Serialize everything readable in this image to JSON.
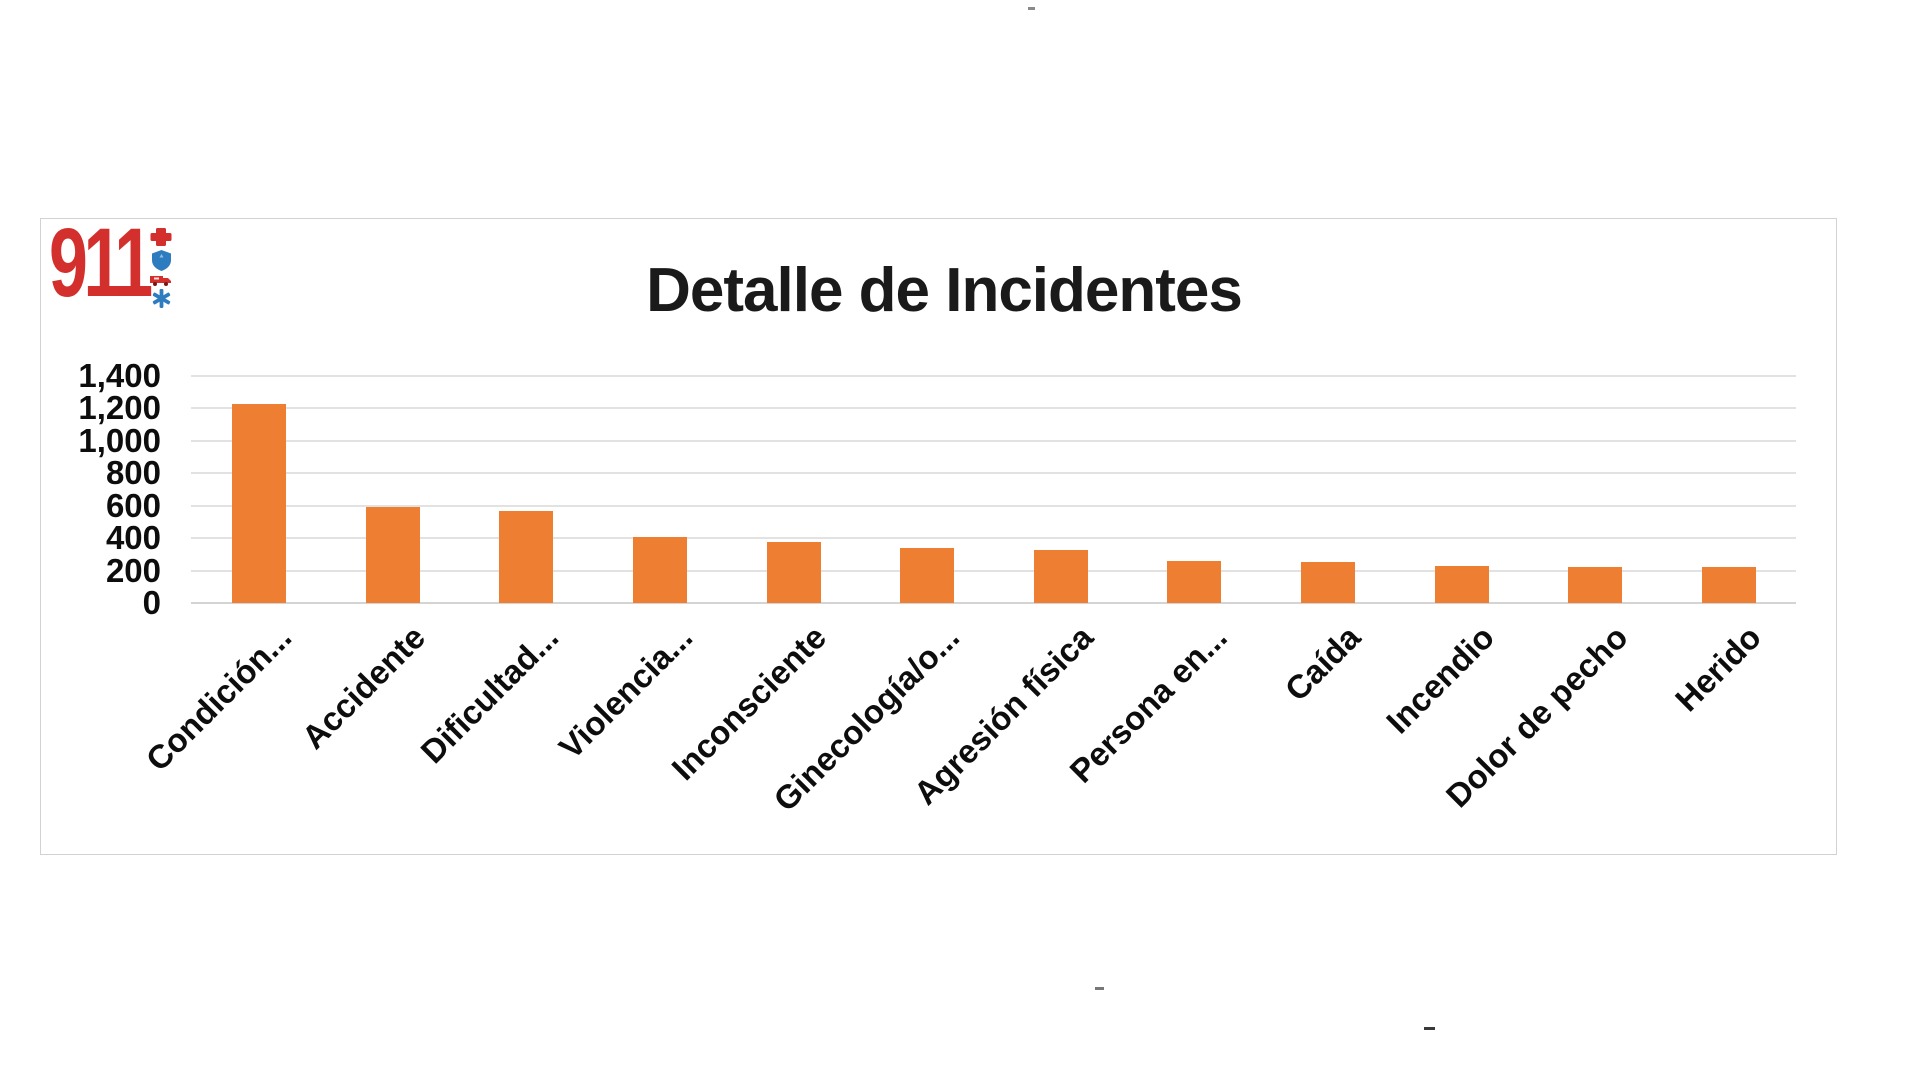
{
  "logo": {
    "text": "911",
    "red": "#d32f2c",
    "blue": "#2e7cc0",
    "icons": [
      "medical-cross",
      "shield",
      "ambulance",
      "star-of-life"
    ]
  },
  "chart_data": {
    "type": "bar",
    "title": "Detalle de Incidentes",
    "categories": [
      "Condición...",
      "Accidente",
      "Dificultad...",
      "Violencia...",
      "Inconsciente",
      "Ginecología/o...",
      "Agresión física",
      "Persona en...",
      "Caída",
      "Incendio",
      "Dolor de pecho",
      "Herido"
    ],
    "values": [
      1230,
      590,
      565,
      410,
      375,
      340,
      325,
      260,
      255,
      230,
      220,
      220
    ],
    "xlabel": "",
    "ylabel": "",
    "ylim": [
      0,
      1400
    ],
    "ytick_interval": 200,
    "ytick_labels": [
      "1,400",
      "1,200",
      "1,000",
      "800",
      "600",
      "400",
      "200",
      "0"
    ],
    "bar_color": "#ED7E32",
    "grid": true,
    "legend": "none",
    "x_labels_rotation_deg": -45
  }
}
